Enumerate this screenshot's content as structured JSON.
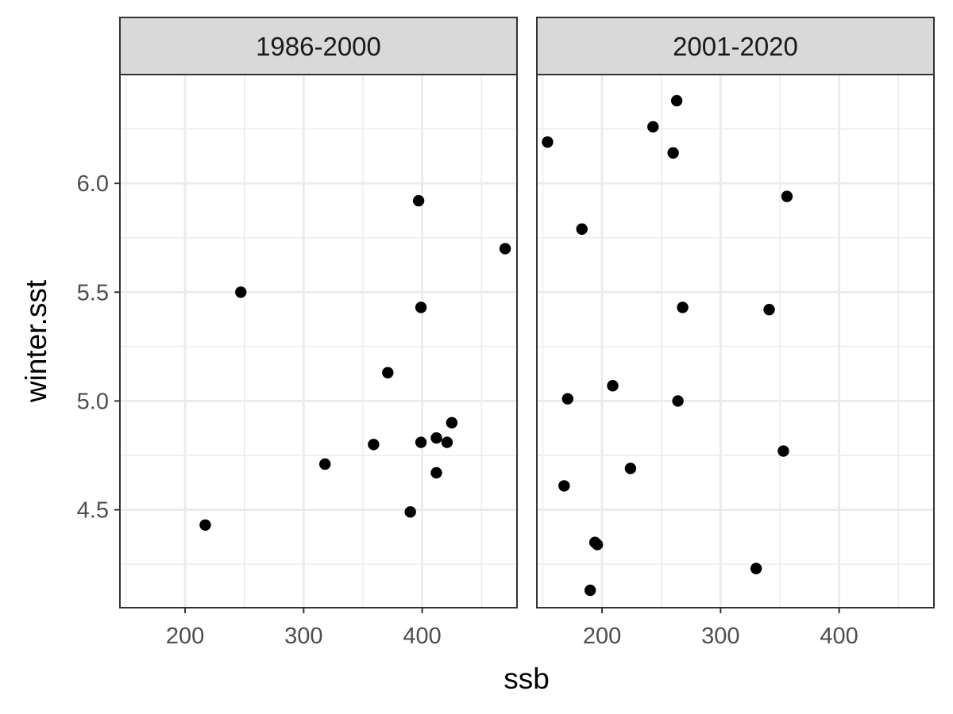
{
  "chart_data": {
    "type": "scatter",
    "xlabel": "ssb",
    "ylabel": "winter.sst",
    "xlim": [
      145,
      480
    ],
    "ylim": [
      4.05,
      6.5
    ],
    "x_ticks": [
      200,
      300,
      400
    ],
    "y_ticks": [
      4.5,
      5.0,
      5.5,
      6.0
    ],
    "x_tick_labels": [
      "200",
      "300",
      "400"
    ],
    "y_tick_labels": [
      "4.5",
      "5.0",
      "5.5",
      "6.0"
    ],
    "grid": true,
    "legend": "none",
    "point_color": "#000000",
    "panels": [
      {
        "title": "1986-2000",
        "points": [
          {
            "x": 217,
            "y": 4.43
          },
          {
            "x": 247,
            "y": 5.5
          },
          {
            "x": 318,
            "y": 4.71
          },
          {
            "x": 359,
            "y": 4.8
          },
          {
            "x": 371,
            "y": 5.13
          },
          {
            "x": 390,
            "y": 4.49
          },
          {
            "x": 397,
            "y": 5.92
          },
          {
            "x": 399,
            "y": 5.43
          },
          {
            "x": 399,
            "y": 4.81
          },
          {
            "x": 412,
            "y": 4.83
          },
          {
            "x": 412,
            "y": 4.67
          },
          {
            "x": 421,
            "y": 4.81
          },
          {
            "x": 425,
            "y": 4.9
          },
          {
            "x": 470,
            "y": 5.7
          }
        ]
      },
      {
        "title": "2001-2020",
        "points": [
          {
            "x": 154,
            "y": 6.19
          },
          {
            "x": 168,
            "y": 4.61
          },
          {
            "x": 171,
            "y": 5.01
          },
          {
            "x": 183,
            "y": 5.79
          },
          {
            "x": 190,
            "y": 4.13
          },
          {
            "x": 194,
            "y": 4.35
          },
          {
            "x": 196,
            "y": 4.34
          },
          {
            "x": 209,
            "y": 5.07
          },
          {
            "x": 224,
            "y": 4.69
          },
          {
            "x": 243,
            "y": 6.26
          },
          {
            "x": 260,
            "y": 6.14
          },
          {
            "x": 263,
            "y": 6.38
          },
          {
            "x": 264,
            "y": 5.0
          },
          {
            "x": 268,
            "y": 5.43
          },
          {
            "x": 330,
            "y": 4.23
          },
          {
            "x": 341,
            "y": 5.42
          },
          {
            "x": 353,
            "y": 4.77
          },
          {
            "x": 356,
            "y": 5.94
          }
        ]
      }
    ]
  }
}
